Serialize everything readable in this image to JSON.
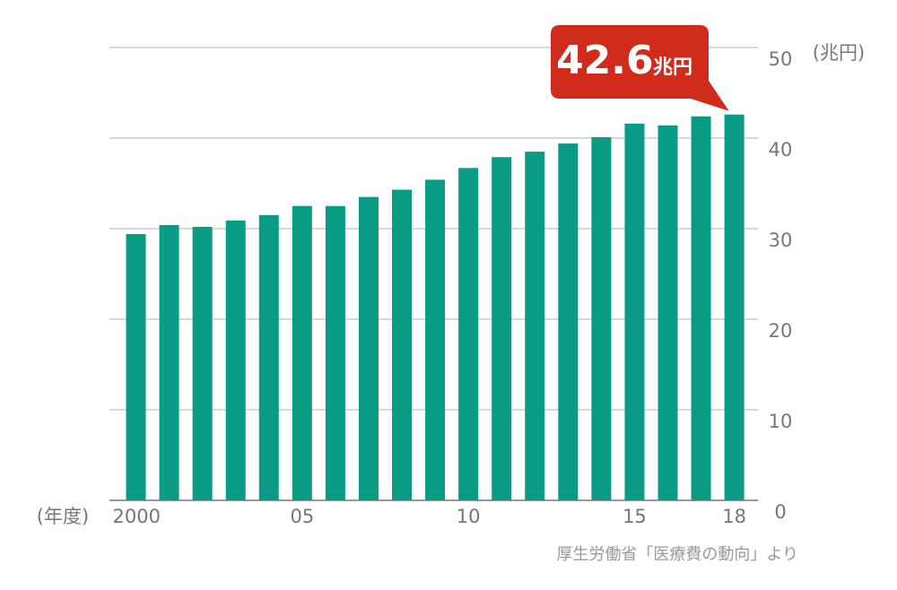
{
  "chart_data": {
    "type": "bar",
    "y_unit_label": "(兆円)",
    "x_unit_label": "(年度)",
    "source": "厚生労働省「医療費の動向」より",
    "categories": [
      "2000",
      null,
      null,
      null,
      null,
      "05",
      null,
      null,
      null,
      null,
      "10",
      null,
      null,
      null,
      null,
      "15",
      null,
      null,
      "18"
    ],
    "values": [
      29.4,
      30.4,
      30.2,
      30.9,
      31.5,
      32.5,
      32.5,
      33.5,
      34.3,
      35.4,
      36.7,
      37.9,
      38.5,
      39.4,
      40.1,
      41.6,
      41.4,
      42.4,
      42.6
    ],
    "value_labels": [
      null,
      null,
      null,
      null,
      null,
      null,
      null,
      null,
      null,
      null,
      null,
      null,
      null,
      null,
      null,
      null,
      null,
      null,
      "42.6"
    ],
    "callout_unit": "兆円",
    "color": "#0a9b84",
    "callout_color": "#d12b1c",
    "ylim": [
      0,
      50
    ],
    "yticks": [
      0,
      10,
      20,
      30,
      40,
      50
    ],
    "grid": true
  }
}
